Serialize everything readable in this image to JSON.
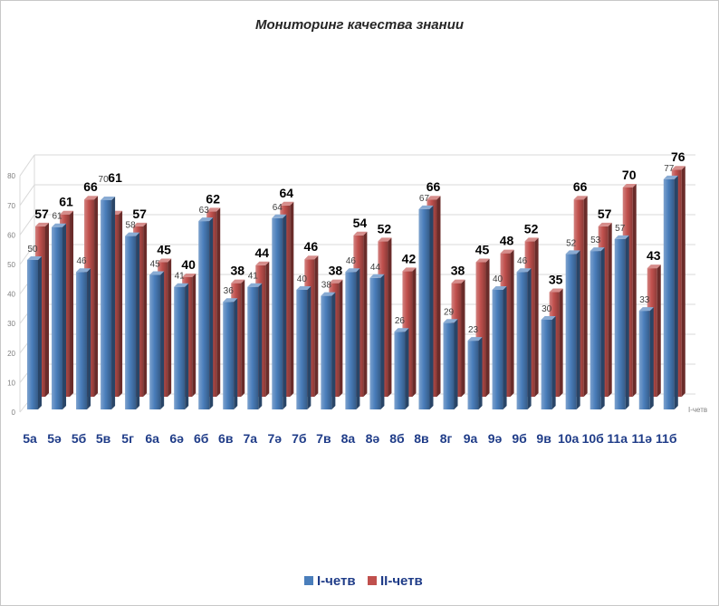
{
  "chart_data": {
    "type": "bar",
    "projection": "3d",
    "title": "Мониторинг качества знании",
    "categories": [
      "5а",
      "5ә",
      "5б",
      "5в",
      "5г",
      "6а",
      "6ә",
      "6б",
      "6в",
      "7а",
      "7ә",
      "7б",
      "7в",
      "8а",
      "8ә",
      "8б",
      "8в",
      "8г",
      "9а",
      "9ә",
      "9б",
      "9в",
      "10а",
      "10б",
      "11а",
      "11ә",
      "11б"
    ],
    "series": [
      {
        "name": "I-четв",
        "color": "#4a7ebb",
        "values": [
          50,
          61,
          46,
          70,
          58,
          45,
          41,
          63,
          36,
          41,
          64,
          40,
          38,
          46,
          44,
          26,
          67,
          29,
          23,
          40,
          46,
          30,
          52,
          53,
          57,
          33,
          77
        ]
      },
      {
        "name": "II-четв",
        "color": "#c0504d",
        "values": [
          57,
          61,
          66,
          61,
          57,
          45,
          40,
          62,
          38,
          44,
          64,
          46,
          38,
          54,
          52,
          42,
          66,
          38,
          45,
          48,
          52,
          35,
          66,
          57,
          70,
          43,
          76
        ]
      }
    ],
    "ylim": [
      0,
      80
    ],
    "yticks": [
      0,
      10,
      20,
      30,
      40,
      50,
      60,
      70,
      80
    ],
    "depth_axis_label": "I-четв",
    "grid": true,
    "legend": "bottom"
  }
}
